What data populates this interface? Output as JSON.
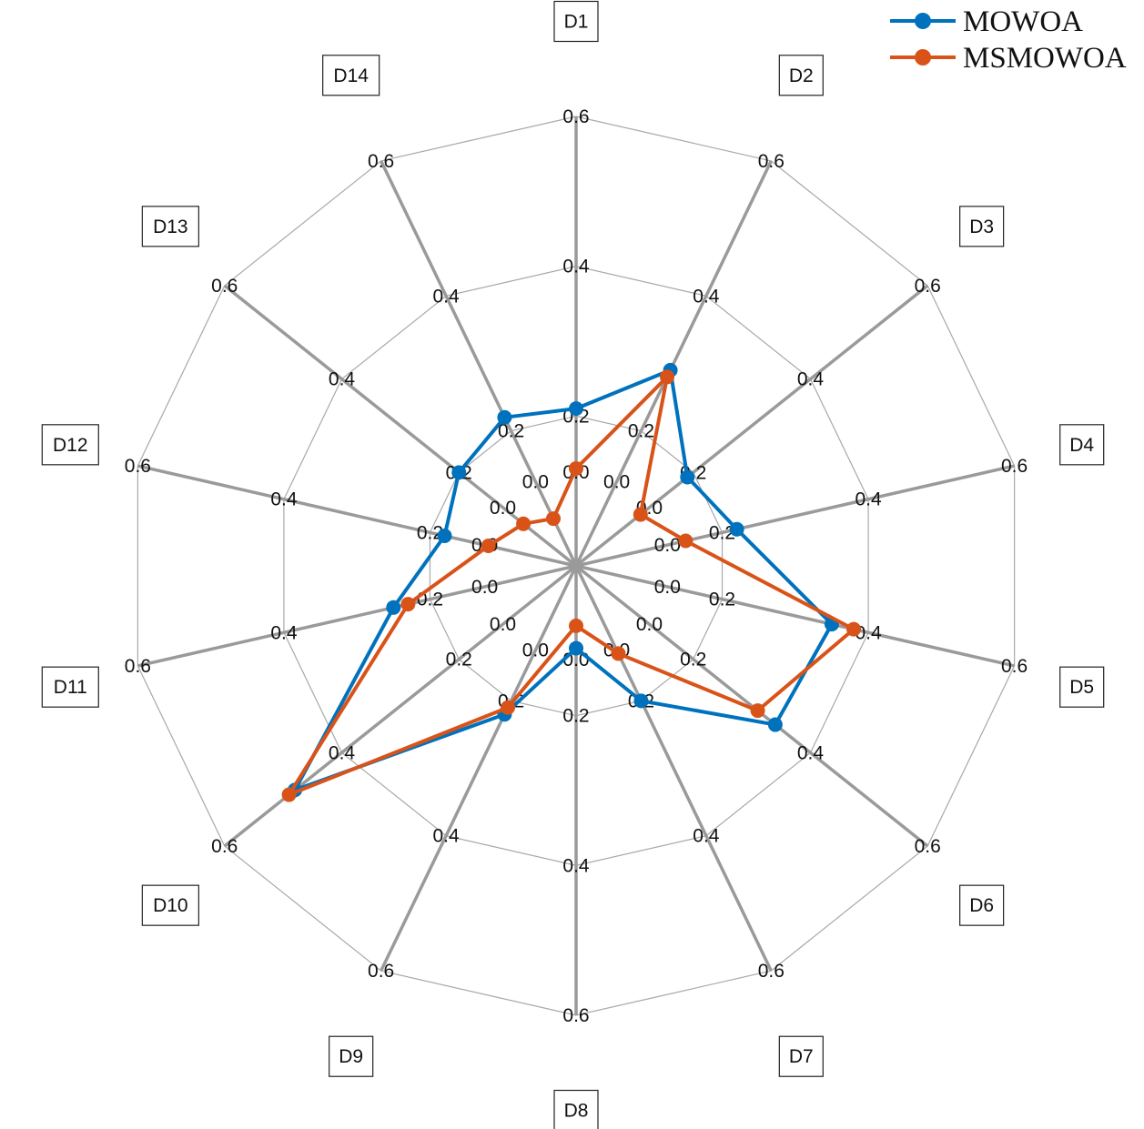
{
  "chart_data": {
    "type": "radar",
    "axes": [
      "D1",
      "D2",
      "D3",
      "D4",
      "D5",
      "D6",
      "D7",
      "D8",
      "D9",
      "D10",
      "D11",
      "D12",
      "D13",
      "D14"
    ],
    "tick_labels": [
      "0.0",
      "0.2",
      "0.4",
      "0.6"
    ],
    "rlim": [
      0,
      0.6
    ],
    "grid": true,
    "legend_position": "top-right",
    "series": [
      {
        "name": "MOWOA",
        "color": "#0072BD",
        "values": [
          0.21,
          0.29,
          0.19,
          0.22,
          0.35,
          0.34,
          0.2,
          0.11,
          0.22,
          0.48,
          0.25,
          0.18,
          0.2,
          0.22
        ]
      },
      {
        "name": "MSMOWOA",
        "color": "#D95319",
        "values": [
          0.13,
          0.28,
          0.11,
          0.15,
          0.38,
          0.31,
          0.13,
          0.08,
          0.21,
          0.49,
          0.23,
          0.12,
          0.09,
          0.07
        ]
      }
    ]
  }
}
